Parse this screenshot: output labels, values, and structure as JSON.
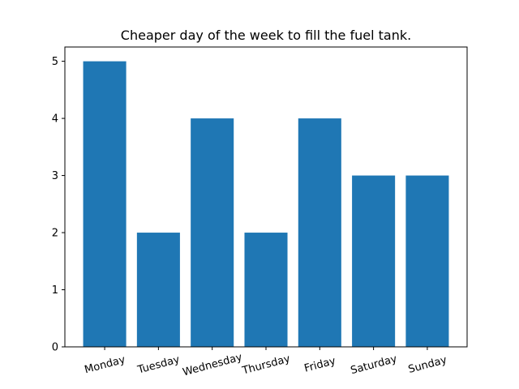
{
  "chart_data": {
    "type": "bar",
    "title": "Cheaper day of the week to fill the fuel tank.",
    "xlabel": "",
    "ylabel": "",
    "categories": [
      "Monday",
      "Tuesday",
      "Wednesday",
      "Thursday",
      "Friday",
      "Saturday",
      "Sunday"
    ],
    "values": [
      5,
      2,
      4,
      2,
      4,
      3,
      3
    ],
    "ylim": [
      0,
      5.25
    ],
    "yticks": [
      0,
      1,
      2,
      3,
      4,
      5
    ],
    "xtick_rotation_deg": 15,
    "bar_color": "#1f77b4",
    "grid": false,
    "legend": "none"
  }
}
